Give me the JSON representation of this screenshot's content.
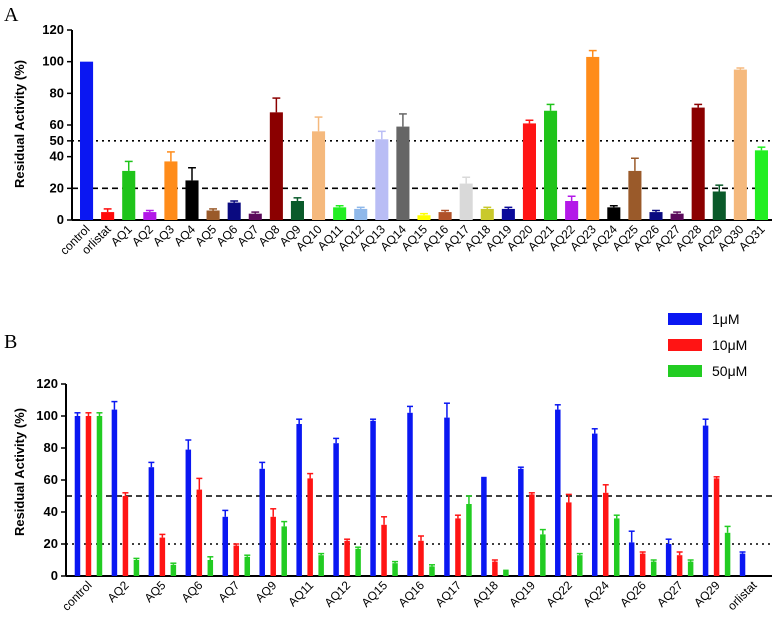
{
  "chart_data": [
    {
      "panel_label": "A",
      "type": "bar",
      "ylabel": "Residual Activity (%)",
      "ylim": [
        0,
        120
      ],
      "yticks": [
        0,
        20,
        40,
        60,
        80,
        100,
        120
      ],
      "yticks_extra": [
        50
      ],
      "ref_lines": [
        {
          "value": 50,
          "style": "dotted"
        },
        {
          "value": 20,
          "style": "dashed"
        }
      ],
      "categories": [
        "control",
        "orlistat",
        "AQ1",
        "AQ2",
        "AQ3",
        "AQ4",
        "AQ5",
        "AQ6",
        "AQ7",
        "AQ8",
        "AQ9",
        "AQ10",
        "AQ11",
        "AQ12",
        "AQ13",
        "AQ14",
        "AQ15",
        "AQ16",
        "AQ17",
        "AQ18",
        "AQ19",
        "AQ20",
        "AQ21",
        "AQ22",
        "AQ23",
        "AQ24",
        "AQ25",
        "AQ26",
        "AQ27",
        "AQ28",
        "AQ29",
        "AQ30",
        "AQ31"
      ],
      "values": [
        100,
        5,
        31,
        5,
        37,
        25,
        6,
        11,
        4,
        68,
        12,
        56,
        8,
        7,
        51,
        59,
        3,
        5,
        23,
        7,
        7,
        61,
        69,
        12,
        103,
        8,
        31,
        5,
        4,
        71,
        18,
        95,
        44
      ],
      "errors": [
        0,
        2,
        6,
        1,
        6,
        8,
        1,
        1,
        1,
        9,
        2,
        9,
        1,
        1,
        5,
        8,
        1,
        1,
        4,
        1,
        1,
        2,
        4,
        3,
        4,
        1,
        8,
        1,
        1,
        2,
        4,
        1,
        2
      ],
      "colors": [
        "#0a17f2",
        "#ff0a0a",
        "#1fc41a",
        "#b318e8",
        "#ff8c1a",
        "#000000",
        "#9a5a2a",
        "#0a0a80",
        "#5a0a5a",
        "#8b0000",
        "#0a5a2a",
        "#f5b97d",
        "#22ee22",
        "#8fb8ea",
        "#b9bdf5",
        "#666666",
        "#ffff00",
        "#b0522a",
        "#d9d9d9",
        "#c9c92a",
        "#0a0a9a",
        "#ff1414",
        "#1fc41a",
        "#b318e8",
        "#ff8c1a",
        "#000000",
        "#9a5a2a",
        "#0a0a80",
        "#5a0a5a",
        "#8b0000",
        "#0a5a2a",
        "#f5b97d",
        "#22ee22"
      ]
    },
    {
      "panel_label": "B",
      "type": "bar",
      "ylabel": "Residual Activity (%)",
      "ylim": [
        0,
        120
      ],
      "yticks": [
        0,
        20,
        40,
        60,
        80,
        100,
        120
      ],
      "ref_lines": [
        {
          "value": 50,
          "style": "dashed"
        },
        {
          "value": 20,
          "style": "dotted"
        }
      ],
      "categories": [
        "control",
        "AQ2",
        "AQ5",
        "AQ6",
        "AQ7",
        "AQ9",
        "AQ11",
        "AQ12",
        "AQ15",
        "AQ16",
        "AQ17",
        "AQ18",
        "AQ19",
        "AQ22",
        "AQ24",
        "AQ26",
        "AQ27",
        "AQ29",
        "orlistat"
      ],
      "legend_position": "top-right",
      "series": [
        {
          "name": "1μM",
          "color": "#0a17f2",
          "values": [
            100,
            104,
            68,
            79,
            37,
            67,
            95,
            83,
            97,
            102,
            99,
            62,
            67,
            104,
            89,
            21,
            20,
            94,
            14
          ],
          "errors": [
            2,
            5,
            3,
            6,
            4,
            4,
            3,
            3,
            1,
            4,
            9,
            0,
            1,
            3,
            3,
            7,
            3,
            4,
            1
          ]
        },
        {
          "name": "10μM",
          "color": "#ff1414",
          "values": [
            100,
            50,
            24,
            54,
            19,
            37,
            61,
            22,
            32,
            22,
            36,
            9,
            51,
            46,
            52,
            14,
            13,
            61,
            null
          ],
          "errors": [
            2,
            2,
            2,
            7,
            1,
            5,
            3,
            1,
            5,
            3,
            2,
            1,
            1,
            5,
            5,
            1,
            2,
            1,
            null
          ]
        },
        {
          "name": "50μM",
          "color": "#22cc22",
          "values": [
            100,
            10,
            7,
            10,
            12,
            31,
            13,
            17,
            8,
            6,
            45,
            4,
            26,
            13,
            36,
            9,
            9,
            27,
            null
          ],
          "errors": [
            2,
            1,
            1,
            2,
            1,
            3,
            1,
            1,
            1,
            1,
            5,
            0,
            3,
            1,
            2,
            1,
            1,
            4,
            null
          ]
        }
      ]
    }
  ]
}
